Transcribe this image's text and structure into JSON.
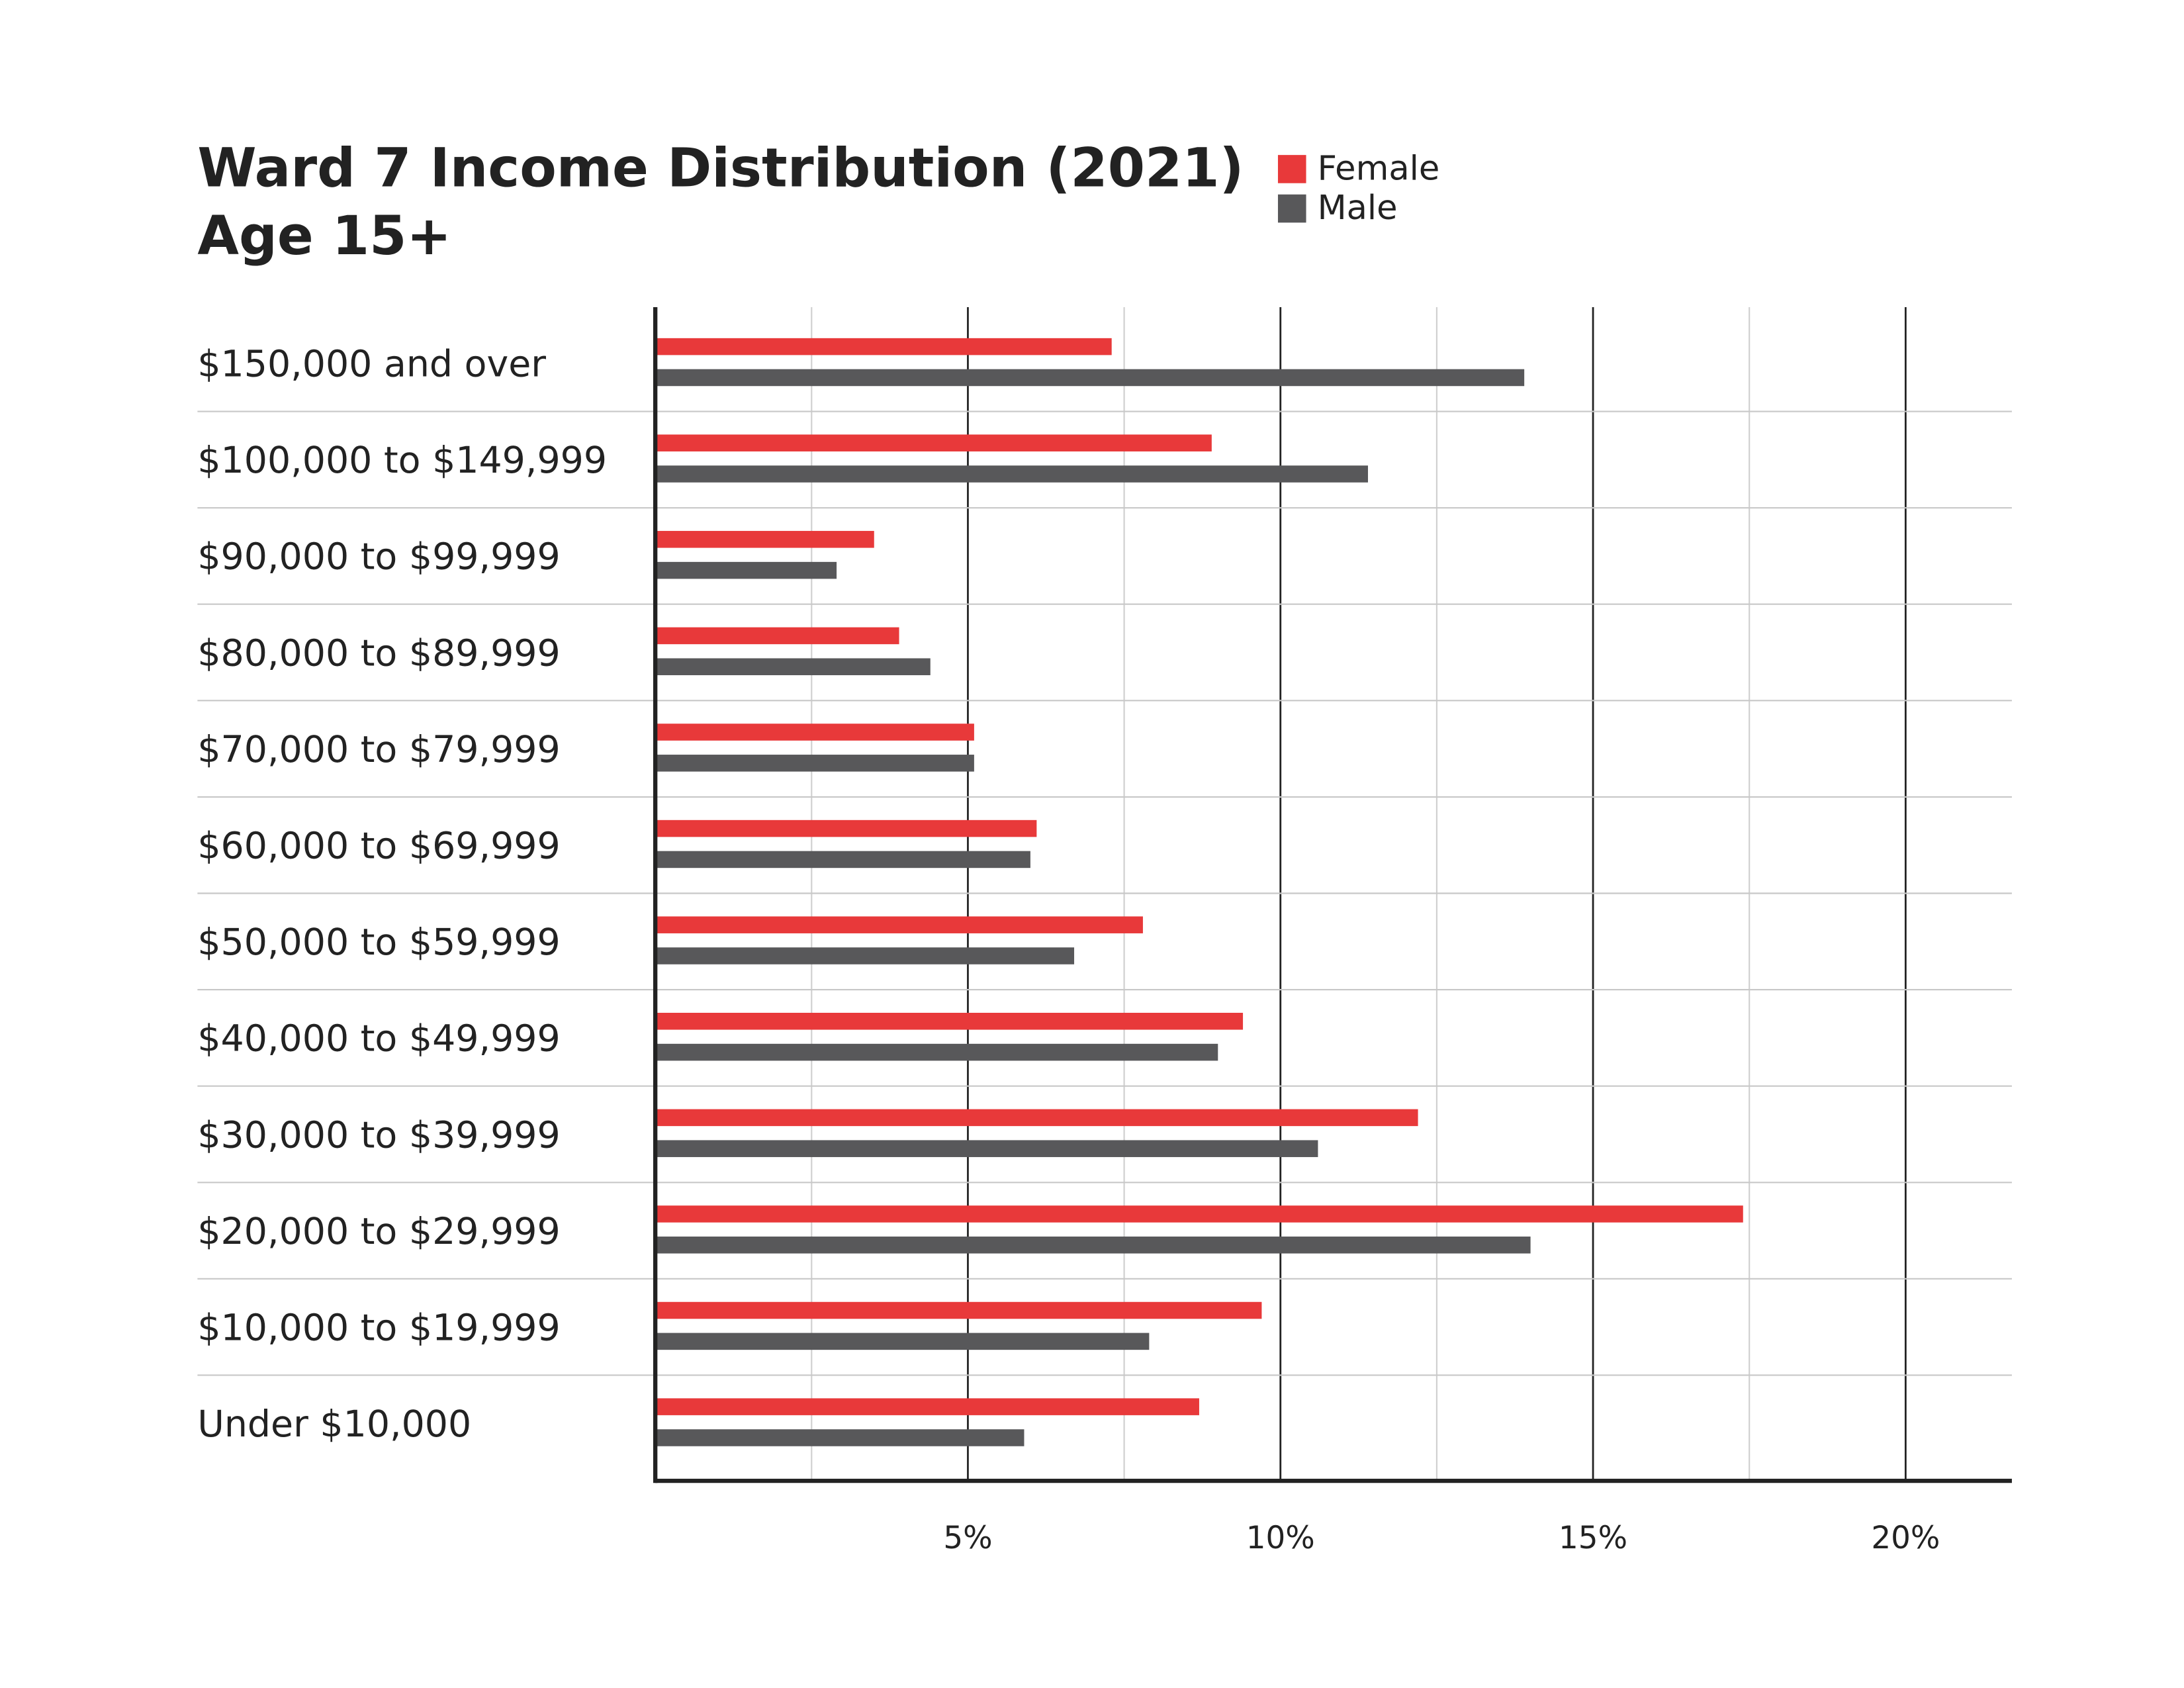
{
  "chart_data": {
    "type": "hbar",
    "title": "Ward 7 Income Distribution (2021)",
    "subtitle": "Age 15+",
    "categories": [
      "$150,000 and over",
      "$100,000 to $149,999",
      "$90,000 to $99,999",
      "$80,000 to $89,999",
      "$70,000 to $79,999",
      "$60,000 to $69,999",
      "$50,000 to $59,999",
      "$40,000 to $49,999",
      "$30,000 to $39,999",
      "$20,000 to $29,999",
      "$10,000 to $19,999",
      "Under $10,000"
    ],
    "series": [
      {
        "name": "Female",
        "color": "#e8393a",
        "values": [
          7.3,
          8.9,
          3.5,
          3.9,
          5.1,
          6.1,
          7.8,
          9.4,
          12.2,
          17.4,
          9.7,
          8.7
        ]
      },
      {
        "name": "Male",
        "color": "#58585a",
        "values": [
          13.9,
          11.4,
          2.9,
          4.4,
          5.1,
          6.0,
          6.7,
          9.0,
          10.6,
          14.0,
          7.9,
          5.9
        ]
      }
    ],
    "xlim": [
      0,
      21.7
    ],
    "xticks": [
      {
        "value": 5,
        "label": "5%"
      },
      {
        "value": 10,
        "label": "10%"
      },
      {
        "value": 15,
        "label": "15%"
      },
      {
        "value": 20,
        "label": "20%"
      }
    ],
    "minor_xticks": [
      2.5,
      7.5,
      12.5,
      17.5
    ],
    "grid": true
  }
}
